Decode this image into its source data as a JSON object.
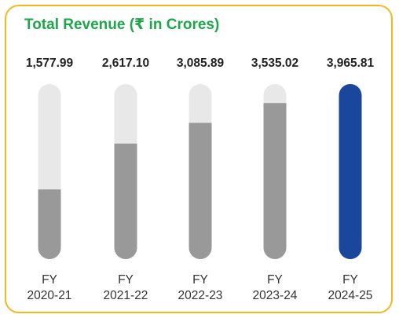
{
  "title": "Total Revenue (₹ in Crores)",
  "colors": {
    "border": "#f5b81c",
    "title": "#1ea74a",
    "track": "#e8e8e8",
    "fill_default": "#999999",
    "fill_highlight": "#1a479c"
  },
  "chart_data": {
    "type": "bar",
    "title": "Total Revenue (₹ in Crores)",
    "categories": [
      "FY 2020-21",
      "FY 2021-22",
      "FY 2022-23",
      "FY 2023-24",
      "FY 2024-25"
    ],
    "tick_lines": [
      [
        "FY",
        "2020-21"
      ],
      [
        "FY",
        "2021-22"
      ],
      [
        "FY",
        "2022-23"
      ],
      [
        "FY",
        "2023-24"
      ],
      [
        "FY",
        "2024-25"
      ]
    ],
    "values": [
      1577.99,
      2617.1,
      3085.89,
      3535.02,
      3965.81
    ],
    "value_labels": [
      "1,577.99",
      "2,617.10",
      "3,085.89",
      "3,535.02",
      "3,965.81"
    ],
    "ylim": [
      0,
      3965.81
    ],
    "highlight_index": 4,
    "grid": false
  }
}
